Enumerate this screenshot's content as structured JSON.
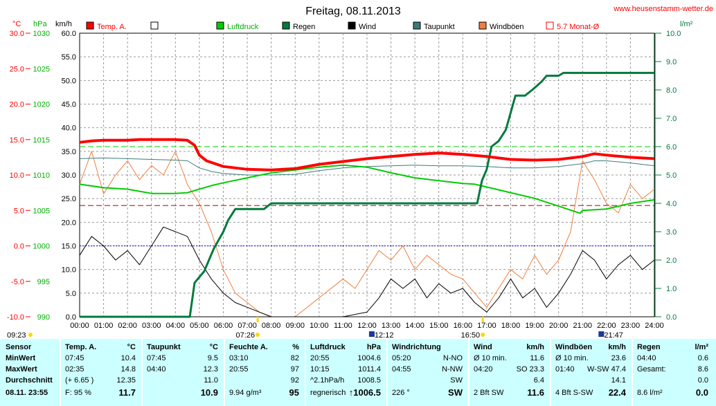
{
  "header": {
    "title": "Freitag, 08.11.2013",
    "site": "www.heusenstamm-wetter.de"
  },
  "axes": {
    "temp_unit": "°C",
    "press_unit": "hPa",
    "wind_unit": "km/h",
    "rain_unit": "l/m²",
    "temp_ticks": [
      "30.0",
      "25.0",
      "20.0",
      "15.0",
      "10.0",
      "5.0",
      "0.0",
      "-5.0",
      "-10.0"
    ],
    "press_ticks": [
      "1030",
      "1025",
      "1020",
      "1015",
      "1010",
      "1005",
      "1000",
      "995",
      "990"
    ],
    "wind_ticks": [
      "60.0",
      "55.0",
      "50.0",
      "45.0",
      "40.0",
      "35.0",
      "30.0",
      "25.0",
      "20.0",
      "15.0",
      "10.0",
      "5.0",
      "0.0"
    ],
    "rain_ticks": [
      "10.0",
      "9.0",
      "8.0",
      "7.0",
      "6.0",
      "5.0",
      "4.0",
      "3.0",
      "2.0",
      "1.0",
      "0.0"
    ],
    "time_ticks": [
      "00:00",
      "01:00",
      "02:00",
      "03:00",
      "04:00",
      "05:00",
      "06:00",
      "07:00",
      "08:00",
      "09:00",
      "10:00",
      "11:00",
      "12:00",
      "13:00",
      "14:00",
      "15:00",
      "16:00",
      "17:00",
      "18:00",
      "19:00",
      "20:00",
      "21:00",
      "22:00",
      "23:00",
      "24:00"
    ]
  },
  "legend": [
    {
      "label": "Temp. A.",
      "color": "#ff0000"
    },
    {
      "label": "",
      "color": "#ffffff"
    },
    {
      "label": "Luftdruck",
      "color": "#00cc00"
    },
    {
      "label": "Regen",
      "color": "#007a3d"
    },
    {
      "label": "Wind",
      "color": "#000000"
    },
    {
      "label": "Taupunkt",
      "color": "#3d7a7a"
    },
    {
      "label": "Windböen",
      "color": "#f08040"
    },
    {
      "label": "5.7 Monat-Ø",
      "color": "#ff0000"
    }
  ],
  "markers": {
    "sunrise": "07:26",
    "sunset": "16:50",
    "moonrise": "12:12",
    "moonset": "21:47",
    "left_time": "09:23"
  },
  "chart_data": {
    "type": "line",
    "x_range": [
      "00:00",
      "24:00"
    ],
    "scales": {
      "temp": {
        "unit": "°C",
        "range": [
          -10,
          30
        ]
      },
      "pressure": {
        "unit": "hPa",
        "range": [
          990,
          1030
        ]
      },
      "wind": {
        "unit": "km/h",
        "range": [
          0,
          60
        ]
      },
      "rain": {
        "unit": "l/m²",
        "range": [
          0,
          10
        ]
      }
    },
    "reference_lines": {
      "monthly_avg_temp": 5.7,
      "pressure_1000": 1000
    },
    "series": [
      {
        "name": "Temp. A.",
        "scale": "temp",
        "color": "#ff0000",
        "x": [
          0,
          0.5,
          1,
          1.5,
          2,
          2.5,
          3,
          3.5,
          4,
          4.5,
          4.8,
          5.0,
          5.3,
          6,
          7,
          8,
          9,
          10,
          11,
          12,
          13,
          14,
          15,
          16,
          17,
          18,
          19,
          20,
          21,
          21.5,
          22,
          23,
          24
        ],
        "y": [
          14.6,
          14.8,
          14.9,
          14.9,
          14.9,
          15.0,
          15.0,
          15.0,
          15.0,
          14.9,
          14.2,
          12.8,
          12.0,
          11.2,
          10.8,
          10.7,
          10.9,
          11.5,
          11.9,
          12.3,
          12.6,
          12.9,
          13.1,
          12.9,
          12.6,
          12.2,
          12.1,
          12.2,
          12.6,
          13.0,
          12.8,
          12.5,
          12.3
        ]
      },
      {
        "name": "Taupunkt",
        "scale": "temp",
        "color": "#3d7a7a",
        "x": [
          0,
          1,
          2,
          3,
          4,
          4.5,
          5,
          5.5,
          6,
          7,
          8,
          9,
          10,
          11,
          12,
          13,
          14,
          15,
          16,
          17,
          18,
          19,
          20,
          21,
          21.5,
          22,
          23,
          24
        ],
        "y": [
          12.3,
          12.4,
          12.3,
          12.2,
          12.1,
          12.0,
          11.0,
          10.5,
          10.2,
          10.0,
          10.0,
          10.1,
          10.6,
          11.0,
          11.2,
          11.3,
          11.4,
          11.3,
          11.3,
          11.2,
          11.0,
          11.0,
          11.2,
          11.6,
          12.0,
          12.0,
          11.7,
          11.3
        ]
      },
      {
        "name": "Luftdruck",
        "scale": "pressure",
        "color": "#00cc00",
        "x": [
          0,
          1,
          2,
          3,
          4,
          4.5,
          5,
          5.5,
          6,
          7,
          8,
          9,
          10,
          11,
          12,
          13,
          14,
          15,
          16,
          16.5,
          17,
          18,
          19,
          20,
          20.9,
          21,
          22,
          23,
          24
        ],
        "y": [
          1008.7,
          1008.2,
          1008.0,
          1007.4,
          1007.4,
          1007.5,
          1008.0,
          1008.5,
          1008.9,
          1009.6,
          1010.3,
          1010.7,
          1011.1,
          1011.4,
          1011.1,
          1010.3,
          1009.6,
          1009.2,
          1008.8,
          1008.7,
          1008.3,
          1007.5,
          1006.7,
          1005.6,
          1004.6,
          1005.0,
          1005.2,
          1006.0,
          1006.5
        ]
      },
      {
        "name": "Regen",
        "scale": "rain",
        "color": "#007a3d",
        "x": [
          0,
          4.6,
          4.8,
          5.2,
          5.6,
          6.0,
          6.2,
          6.5,
          7.0,
          7.7,
          8.0,
          10,
          12,
          14,
          16,
          16.6,
          16.8,
          17.0,
          17.2,
          17.5,
          17.8,
          18.0,
          18.2,
          18.6,
          18.9,
          19.3,
          19.5,
          20,
          20.2,
          21,
          22,
          23,
          24
        ],
        "y": [
          0,
          0,
          1.2,
          1.6,
          2.4,
          3.0,
          3.4,
          3.8,
          3.8,
          3.8,
          4.0,
          4.0,
          4.0,
          4.0,
          4.0,
          4.0,
          4.8,
          5.2,
          6.0,
          6.2,
          6.6,
          7.2,
          7.8,
          7.8,
          8.0,
          8.3,
          8.5,
          8.5,
          8.6,
          8.6,
          8.6,
          8.6,
          8.6
        ]
      },
      {
        "name": "Wind",
        "scale": "wind",
        "color": "#000000",
        "x": [
          0,
          0.5,
          1,
          1.5,
          2,
          2.5,
          3,
          3.5,
          4,
          4.5,
          5,
          5.5,
          6,
          6.5,
          7,
          7.5,
          8,
          9,
          10,
          11,
          12,
          12.5,
          13,
          13.5,
          14,
          14.5,
          15,
          15.5,
          16,
          16.5,
          17,
          17.5,
          18,
          18.5,
          19,
          19.5,
          20,
          20.5,
          21,
          21.5,
          22,
          22.5,
          23,
          23.5,
          24
        ],
        "y": [
          13,
          17,
          15,
          12,
          14,
          11,
          15,
          19,
          18,
          17,
          12,
          8,
          5,
          3,
          2,
          1,
          0,
          0,
          0,
          0,
          1,
          4,
          8,
          6,
          8,
          4,
          7,
          5,
          6,
          3,
          1,
          4,
          8,
          4,
          6,
          2,
          5,
          9,
          14,
          12,
          8,
          11,
          13,
          10,
          12
        ]
      },
      {
        "name": "Windböen",
        "scale": "wind",
        "color": "#f08040",
        "x": [
          0,
          0.5,
          1,
          1.5,
          2,
          2.5,
          3,
          3.5,
          4,
          4.5,
          5,
          5.5,
          6,
          6.5,
          7,
          7.5,
          8,
          9,
          10,
          11,
          11.5,
          12,
          12.5,
          13,
          13.5,
          14,
          14.5,
          15,
          15.5,
          16,
          16.5,
          17,
          17.5,
          18,
          18.5,
          19,
          19.5,
          20,
          20.5,
          21,
          21.5,
          22,
          22.5,
          23,
          23.5,
          24
        ],
        "y": [
          28,
          35,
          26,
          30,
          33,
          29,
          32,
          30,
          35,
          28,
          24,
          18,
          10,
          5,
          3,
          1,
          0,
          0,
          4,
          8,
          6,
          10,
          14,
          12,
          15,
          10,
          13,
          11,
          9,
          8,
          5,
          2,
          6,
          10,
          8,
          13,
          9,
          12,
          18,
          33,
          29,
          24,
          22,
          28,
          25,
          27
        ]
      }
    ]
  },
  "table": {
    "columns": [
      {
        "title": "Sensor",
        "unit": "",
        "rows": [
          [
            "MinWert",
            ""
          ],
          [
            "MaxWert",
            ""
          ],
          [
            "Durchschnitt",
            ""
          ]
        ],
        "footer": [
          "08.11. 23:55",
          ""
        ]
      },
      {
        "title": "Temp. A.",
        "unit": "°C",
        "rows": [
          [
            "07:45",
            "10.4"
          ],
          [
            "02:35",
            "14.8"
          ],
          [
            "(+ 6.65 )",
            "12.35"
          ]
        ],
        "footer": [
          "F: 95 %",
          "11.7"
        ]
      },
      {
        "title": "Taupunkt",
        "unit": "°C",
        "rows": [
          [
            "07:45",
            "9.5"
          ],
          [
            "04:40",
            "12.3"
          ],
          [
            "",
            "11.0"
          ]
        ],
        "footer": [
          "",
          "10.9"
        ]
      },
      {
        "title": "Feuchte A.",
        "unit": "%",
        "rows": [
          [
            "03:10",
            "82"
          ],
          [
            "20:55",
            "97"
          ],
          [
            "",
            "92"
          ]
        ],
        "footer": [
          "9.94 g/m³",
          "95"
        ]
      },
      {
        "title": "Luftdruck",
        "unit": "hPa",
        "rows": [
          [
            "20:55",
            "1004.6"
          ],
          [
            "10:15",
            "1011.4"
          ],
          [
            "^2.1hPa/h",
            "1008.5"
          ]
        ],
        "footer": [
          "regnerisch",
          "↑1006.5"
        ]
      },
      {
        "title": "Windrichtung",
        "unit": "",
        "rows": [
          [
            "05:20",
            "N-NO"
          ],
          [
            "04:55",
            "N-NW"
          ],
          [
            "",
            "SW"
          ]
        ],
        "footer": [
          "226 °",
          "SW"
        ]
      },
      {
        "title": "Wind",
        "unit": "km/h",
        "rows": [
          [
            "Ø 10 min.",
            "11.6"
          ],
          [
            "04:20",
            "SO 23.3"
          ],
          [
            "",
            "6.4"
          ]
        ],
        "footer": [
          "2 Bft SW",
          "11.6"
        ]
      },
      {
        "title": "Windböen",
        "unit": "km/h",
        "rows": [
          [
            "Ø 10 min.",
            "23.6"
          ],
          [
            "01:40",
            "W-SW 47.4"
          ],
          [
            "",
            "14.1"
          ]
        ],
        "footer": [
          "4 Bft S-SW",
          "22.4"
        ]
      },
      {
        "title": "Regen",
        "unit": "l/m²",
        "rows": [
          [
            "04:40",
            "0.6"
          ],
          [
            "Gesamt:",
            "8.6"
          ],
          [
            "",
            "0.0"
          ]
        ],
        "footer": [
          "8.6 l/m²",
          "0.0"
        ]
      }
    ]
  }
}
